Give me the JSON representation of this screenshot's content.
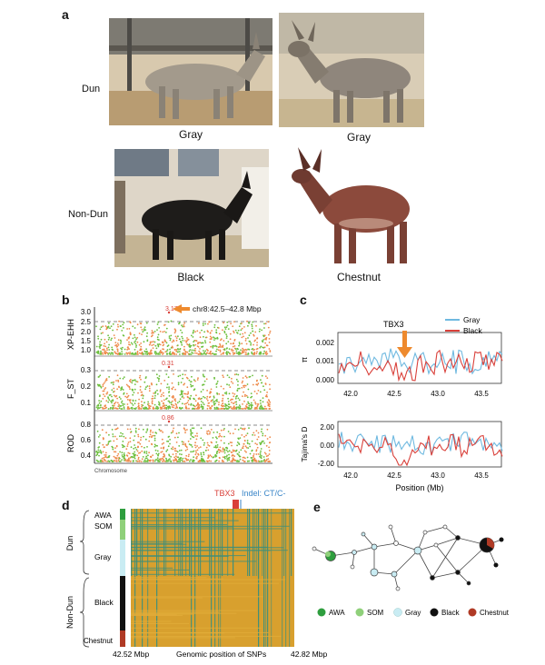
{
  "panels": {
    "a": "a",
    "b": "b",
    "c": "c",
    "d": "d",
    "e": "e"
  },
  "panel_a": {
    "row_labels": {
      "dun": "Dun",
      "nondun": "Non-Dun"
    },
    "captions": {
      "gray1": "Gray",
      "gray2": "Gray",
      "black": "Black",
      "chestnut": "Chestnut"
    }
  },
  "panel_b": {
    "annotation": "chr8:42.5–42.8 Mbp",
    "peak_labels": [
      "3.17",
      "0.31",
      "0.86"
    ],
    "ylabels": [
      "XP-EHH",
      "F_ST",
      "ROD"
    ],
    "ticks_top": [
      "3.0",
      "2.5",
      "2.0",
      "1.5",
      "1.0"
    ],
    "ticks_mid": [
      "0.3",
      "0.2",
      "0.1"
    ],
    "ticks_bot": [
      "0.8",
      "0.6",
      "0.4"
    ],
    "xlabel": "Chromosome"
  },
  "panel_c": {
    "marker": "TBX3",
    "legend": [
      {
        "name": "Gray",
        "color": "#6fb9e0"
      },
      {
        "name": "Black",
        "color": "#d9403a"
      }
    ],
    "top_ylabel": "π",
    "top_ticks": [
      "0.002",
      "0.001",
      "0.000"
    ],
    "bot_ylabel": "Tajima's D",
    "bot_ticks": [
      "2.00",
      "0.00",
      "-2.00"
    ],
    "xticks": [
      "42.0",
      "42.5",
      "43.0",
      "43.5"
    ],
    "xlabel": "Position (Mb)"
  },
  "panel_d": {
    "tbx3": "TBX3",
    "indel": "Indel: CT/C-",
    "group_labels": {
      "awa": "AWA",
      "som": "SOM",
      "gray": "Gray",
      "black": "Black",
      "chestnut": "Chestnut"
    },
    "side_labels": {
      "dun": "Dun",
      "nondun": "Non-Dun"
    },
    "x_left": "42.52 Mbp",
    "x_mid": "Genomic position of SNPs",
    "x_right": "42.82 Mbp"
  },
  "panel_e": {
    "legend": [
      {
        "name": "AWA",
        "color": "#2e9e3e"
      },
      {
        "name": "SOM",
        "color": "#8fd07a"
      },
      {
        "name": "Gray",
        "color": "#c9ecf3"
      },
      {
        "name": "Black",
        "color": "#111111"
      },
      {
        "name": "Chestnut",
        "color": "#b03a25"
      }
    ]
  }
}
